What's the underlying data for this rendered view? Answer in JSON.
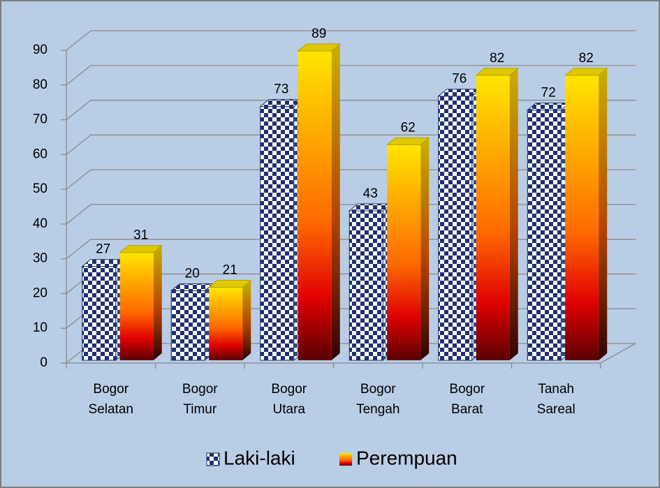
{
  "chart_data": {
    "type": "bar3d",
    "categories": [
      "Bogor Selatan",
      "Bogor Timur",
      "Bogor Utara",
      "Bogor Tengah",
      "Bogor Barat",
      "Tanah Sareal"
    ],
    "series": [
      {
        "name": "Laki-laki",
        "color": "#1f3170",
        "values": [
          27,
          20,
          73,
          43,
          76,
          72
        ]
      },
      {
        "name": "Perempuan",
        "color": "#ff6a00",
        "values": [
          31,
          21,
          89,
          62,
          82,
          82
        ]
      }
    ],
    "ylim": [
      0,
      90
    ],
    "yticks": [
      0,
      10,
      20,
      30,
      40,
      50,
      60,
      70,
      80,
      90
    ],
    "grid": true,
    "legend": "bottom"
  }
}
